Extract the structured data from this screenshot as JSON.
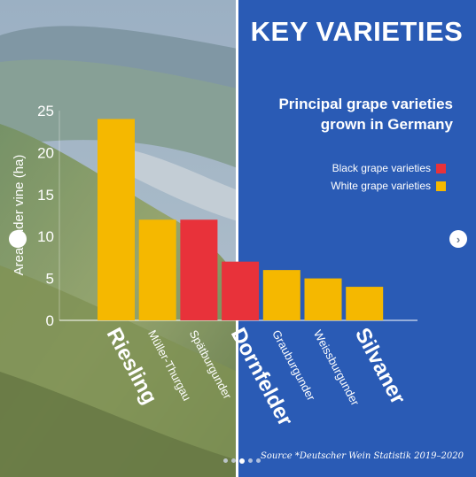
{
  "heading": "KEY VARIETIES",
  "source": "Source *Deutscher Wein Statistik 2019–2020",
  "colors": {
    "black": "#e8323a",
    "white": "#f5b800",
    "panel": "#2a5bb5"
  },
  "nav": {
    "prev_icon": "chevron-left-icon",
    "next_icon": "chevron-right-icon",
    "next_glyph": "›"
  },
  "pager": {
    "count": 5,
    "active_index": 2
  },
  "chart_data": {
    "type": "bar",
    "title": "Principal grape varieties grown in Germany",
    "ylabel": "Area under vine (ha)",
    "xlabel": "",
    "ylim": [
      0,
      25
    ],
    "yticks": [
      "0",
      "5",
      "10",
      "15",
      "20",
      "25"
    ],
    "grid": false,
    "legend_position": "top-right",
    "legend": [
      {
        "label": "Black grape varieties",
        "color": "#e8323a"
      },
      {
        "label": "White grape varieties",
        "color": "#f5b800"
      }
    ],
    "categories": [
      "Riesling",
      "Müller-Thurgau",
      "Spätburgunder",
      "Dornfelder",
      "Grauburgunder",
      "Weissburgunder",
      "Silvaner"
    ],
    "values": [
      24,
      12,
      12,
      7,
      6,
      5,
      4
    ],
    "types": [
      "white",
      "white",
      "black",
      "black",
      "white",
      "white",
      "white"
    ],
    "label_style": [
      "big",
      "small",
      "small",
      "big",
      "small",
      "small",
      "big"
    ]
  }
}
